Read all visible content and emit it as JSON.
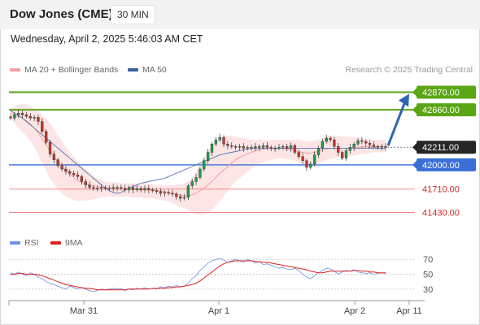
{
  "header": {
    "title": "Dow Jones (CME)",
    "interval": "30 MIN",
    "datetime": "Wednesday, April 2, 2025 5:46:03 AM CET"
  },
  "legend": {
    "bollinger": "MA 20 + Bollinger Bands",
    "ma50": "MA 50",
    "copyright": "Research © 2025 Trading Central"
  },
  "rsi_legend": {
    "rsi": "RSI",
    "ma": "9MA"
  },
  "colors": {
    "up_candle": "#1e9e4a",
    "down_candle": "#c0392b",
    "target_line": "#5aa514",
    "pivot_line": "#3a6fd8",
    "support_line": "#f08a8a",
    "arrow": "#2b66b0",
    "bollinger_fill": "#fde0e0",
    "ma50": "#5b77b3",
    "rsi": "#6f91e0",
    "rsi_ma": "#e02020"
  },
  "chart_data": [
    {
      "type": "candlestick",
      "title": "Dow Jones (CME)",
      "x_ticks": [
        "Mar 31",
        "Apr 1",
        "Apr 2",
        "Apr 11"
      ],
      "ylim": [
        41250,
        43050
      ],
      "levels": [
        {
          "label": "42870.00",
          "value": 42870,
          "kind": "target"
        },
        {
          "label": "42660.00",
          "value": 42660,
          "kind": "target"
        },
        {
          "label": "42211.00",
          "value": 42211,
          "kind": "last"
        },
        {
          "label": "42000.00",
          "value": 42000,
          "kind": "pivot"
        },
        {
          "label": "41710.00",
          "value": 41710,
          "kind": "support"
        },
        {
          "label": "41430.00",
          "value": 41430,
          "kind": "support"
        }
      ],
      "closes": [
        42560,
        42600,
        42620,
        42600,
        42580,
        42560,
        42570,
        42520,
        42400,
        42270,
        42130,
        42060,
        41990,
        41950,
        41920,
        41900,
        41880,
        41860,
        41800,
        41760,
        41730,
        41720,
        41720,
        41730,
        41720,
        41720,
        41730,
        41730,
        41720,
        41700,
        41730,
        41700,
        41720,
        41700,
        41720,
        41700,
        41690,
        41680,
        41660,
        41670,
        41660,
        41650,
        41620,
        41600,
        41610,
        41750,
        41800,
        41850,
        41950,
        42050,
        42150,
        42250,
        42300,
        42330,
        42250,
        42230,
        42220,
        42210,
        42220,
        42200,
        42210,
        42200,
        42220,
        42210,
        42230,
        42210,
        42200,
        42200,
        42210,
        42220,
        42200,
        42230,
        42150,
        42100,
        42050,
        41970,
        42010,
        42120,
        42200,
        42280,
        42320,
        42300,
        42220,
        42150,
        42080,
        42170,
        42210,
        42250,
        42290,
        42280,
        42260,
        42240,
        42220,
        42211,
        42220,
        42211
      ],
      "ma20": [
        42620,
        42600,
        42580,
        42560,
        42530,
        42490,
        42440,
        42380,
        42310,
        42240,
        42170,
        42100,
        42040,
        41980,
        41930,
        41890,
        41850,
        41810,
        41790,
        41770,
        41760,
        41750,
        41740,
        41730,
        41720,
        41720,
        41720,
        41720,
        41710,
        41710,
        41710,
        41710,
        41700,
        41700,
        41700,
        41700,
        41700,
        41690,
        41690,
        41680,
        41670,
        41660,
        41650,
        41640,
        41630,
        41630,
        41640,
        41660,
        41690,
        41720,
        41760,
        41800,
        41850,
        41900,
        41940,
        41980,
        42020,
        42060,
        42090,
        42110,
        42130,
        42150,
        42170,
        42180,
        42190,
        42200,
        42200,
        42200,
        42200,
        42200,
        42190,
        42180,
        42170,
        42160,
        42150,
        42140,
        42140,
        42150,
        42160,
        42180,
        42190,
        42200,
        42200,
        42200,
        42200,
        42200,
        42200,
        42210,
        42210,
        42220,
        42220,
        42220,
        42220,
        42220,
        42220,
        42220
      ],
      "bb_upper": [
        42660,
        42700,
        42720,
        42730,
        42720,
        42700,
        42670,
        42640,
        42600,
        42550,
        42500,
        42430,
        42350,
        42280,
        42220,
        42160,
        42100,
        42040,
        41990,
        41950,
        41910,
        41870,
        41840,
        41820,
        41800,
        41790,
        41790,
        41790,
        41780,
        41780,
        41780,
        41780,
        41780,
        41780,
        41780,
        41770,
        41770,
        41760,
        41760,
        41750,
        41760,
        41760,
        41760,
        41770,
        41780,
        41800,
        41850,
        41920,
        42000,
        42090,
        42160,
        42220,
        42280,
        42320,
        42340,
        42350,
        42350,
        42340,
        42330,
        42320,
        42310,
        42300,
        42300,
        42300,
        42300,
        42300,
        42300,
        42300,
        42300,
        42300,
        42300,
        42300,
        42300,
        42300,
        42290,
        42280,
        42280,
        42290,
        42300,
        42320,
        42340,
        42350,
        42350,
        42350,
        42340,
        42340,
        42330,
        42330,
        42320,
        42320,
        42310,
        42310,
        42300,
        42300,
        42300,
        42290
      ],
      "bb_lower": [
        42580,
        42500,
        42440,
        42390,
        42340,
        42280,
        42210,
        42120,
        42020,
        41930,
        41840,
        41770,
        41710,
        41660,
        41620,
        41600,
        41580,
        41570,
        41570,
        41570,
        41580,
        41590,
        41600,
        41610,
        41620,
        41620,
        41620,
        41620,
        41620,
        41620,
        41620,
        41610,
        41610,
        41610,
        41600,
        41600,
        41600,
        41590,
        41580,
        41570,
        41560,
        41540,
        41520,
        41500,
        41480,
        41460,
        41430,
        41410,
        41400,
        41400,
        41420,
        41460,
        41510,
        41570,
        41630,
        41690,
        41750,
        41800,
        41840,
        41880,
        41920,
        41960,
        41990,
        42010,
        42030,
        42050,
        42060,
        42070,
        42080,
        42080,
        42070,
        42060,
        42050,
        42030,
        42010,
        42000,
        42000,
        42010,
        42020,
        42040,
        42060,
        42070,
        42080,
        42090,
        42090,
        42100,
        42100,
        42110,
        42120,
        42130,
        42130,
        42140,
        42150,
        42150,
        42150,
        42150
      ],
      "ma50": [
        42650,
        42620,
        42590,
        42560,
        42520,
        42480,
        42440,
        42400,
        42360,
        42320,
        42280,
        42240,
        42200,
        42160,
        42120,
        42080,
        42040,
        42000,
        41960,
        41920,
        41880,
        41840,
        41800,
        41760,
        41720,
        41690,
        41670,
        41660,
        41670,
        41700,
        41720,
        41740,
        41760,
        41780,
        41790,
        41800,
        41810,
        41820,
        41830,
        41840,
        41860,
        41880,
        41900,
        41920,
        41940,
        41960,
        41980,
        42000,
        42020,
        42040,
        42060,
        42080,
        42100,
        42120,
        42130,
        42140,
        42150,
        42160,
        42170,
        42180,
        42190,
        42200,
        42200,
        42200,
        42200,
        42200,
        42200,
        42200,
        42200,
        42200,
        42200,
        42200,
        42200,
        42200,
        42200,
        42200,
        42200,
        42200,
        42200,
        42200,
        42200,
        42200,
        42200,
        42200,
        42200,
        42200,
        42200,
        42200,
        42200,
        42200,
        42200,
        42200,
        42200,
        42200,
        42200,
        42200
      ]
    },
    {
      "type": "line",
      "title": "RSI",
      "y_ticks": [
        70,
        50,
        30
      ],
      "ylim": [
        20,
        80
      ],
      "series": [
        {
          "name": "RSI",
          "values": [
            52,
            50,
            53,
            50,
            48,
            52,
            50,
            46,
            44,
            40,
            38,
            36,
            34,
            32,
            30,
            34,
            32,
            30,
            32,
            30,
            28,
            27,
            28,
            30,
            29,
            30,
            31,
            30,
            31,
            28,
            30,
            29,
            31,
            30,
            32,
            30,
            31,
            30,
            33,
            32,
            34,
            33,
            35,
            33,
            34,
            38,
            44,
            48,
            55,
            60,
            65,
            68,
            70,
            71,
            69,
            66,
            68,
            70,
            68,
            66,
            70,
            68,
            65,
            67,
            63,
            64,
            62,
            60,
            58,
            59,
            57,
            56,
            58,
            55,
            50,
            46,
            44,
            48,
            52,
            55,
            58,
            57,
            54,
            50,
            53,
            55,
            54,
            56,
            53,
            52,
            51,
            52,
            50,
            51,
            52,
            51
          ]
        },
        {
          "name": "9MA",
          "values": [
            50,
            50,
            51,
            51,
            50,
            50,
            50,
            49,
            48,
            46,
            44,
            42,
            40,
            38,
            36,
            35,
            34,
            33,
            32,
            31,
            31,
            30,
            29,
            29,
            29,
            29,
            29,
            29,
            29,
            29,
            30,
            30,
            30,
            30,
            30,
            30,
            31,
            31,
            31,
            31,
            32,
            32,
            33,
            33,
            34,
            35,
            36,
            38,
            41,
            45,
            49,
            53,
            57,
            61,
            64,
            66,
            67,
            68,
            68,
            68,
            68,
            68,
            67,
            67,
            66,
            66,
            65,
            64,
            63,
            62,
            61,
            60,
            59,
            58,
            57,
            56,
            54,
            53,
            52,
            52,
            53,
            54,
            54,
            54,
            54,
            54,
            54,
            55,
            55,
            54,
            54,
            53,
            53,
            52,
            52,
            52
          ]
        }
      ]
    }
  ]
}
